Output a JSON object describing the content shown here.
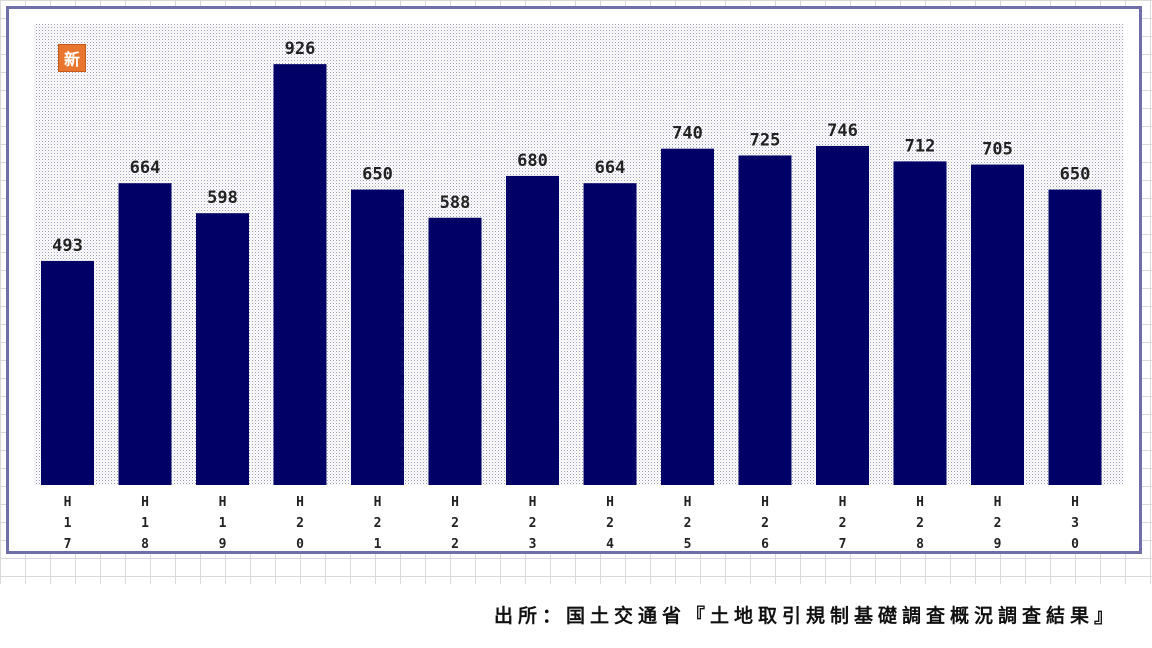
{
  "badge": "新",
  "source": "出所：国土交通省『土地取引規制基礎調査概況調査結果』",
  "colors": {
    "bar": "#000066",
    "frame": "#6e6ea8",
    "plot_dots": "#9a9ab8"
  },
  "chart_data": {
    "type": "bar",
    "categories": [
      "H17",
      "H18",
      "H19",
      "H20",
      "H21",
      "H22",
      "H23",
      "H24",
      "H25",
      "H26",
      "H27",
      "H28",
      "H29",
      "H30"
    ],
    "values": [
      493,
      664,
      598,
      926,
      650,
      588,
      680,
      664,
      740,
      725,
      746,
      712,
      705,
      650
    ],
    "title": "",
    "xlabel": "",
    "ylabel": "",
    "ylim": [
      0,
      1000
    ],
    "grid": false,
    "legend": "none"
  }
}
